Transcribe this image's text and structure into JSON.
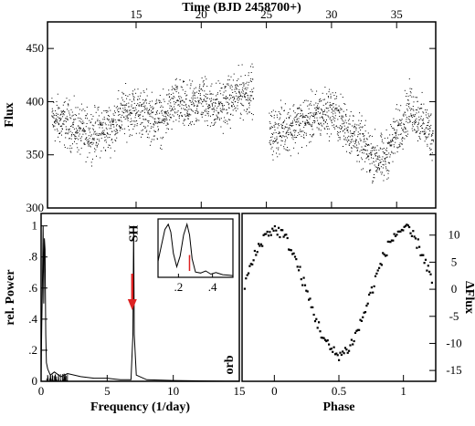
{
  "chart_data": [
    {
      "id": "lightcurve",
      "type": "scatter",
      "xlabel": "Time (BJD 2458700+)",
      "ylabel": "Flux",
      "xlim": [
        8.2,
        38.0
      ],
      "ylim": [
        300,
        475
      ],
      "xticks": [
        15,
        20,
        25,
        30,
        35
      ],
      "yticks": [
        300,
        350,
        400,
        450
      ],
      "segments": [
        {
          "name": "",
          "x": [
            8.5,
            10,
            11,
            12,
            13,
            14,
            15,
            16,
            17,
            18,
            19,
            20,
            21,
            22,
            23,
            24.0
          ],
          "y": [
            385,
            378,
            370,
            372,
            376,
            390,
            393,
            386,
            383,
            400,
            392,
            404,
            395,
            400,
            408,
            412
          ]
        },
        {
          "name": "",
          "x": [
            25.2,
            26,
            27,
            28,
            29,
            30,
            31,
            32,
            33,
            34,
            35,
            36,
            37,
            37.8
          ],
          "y": [
            368,
            374,
            378,
            382,
            388,
            392,
            378,
            365,
            350,
            345,
            372,
            395,
            380,
            368
          ]
        }
      ],
      "scatter_amplitude": 22
    },
    {
      "id": "periodogram",
      "type": "line",
      "xlabel": "Frequency (1/day)",
      "ylabel": "rel. Power",
      "xlim": [
        0,
        15
      ],
      "ylim": [
        0,
        1.08
      ],
      "xticks": [
        0,
        5,
        10,
        15
      ],
      "yticks": [
        0,
        0.2,
        0.4,
        0.6,
        0.8,
        1.0
      ],
      "ytick_labels": [
        "0",
        ".2",
        ".4",
        ".6",
        ".8",
        "1"
      ],
      "x": [
        0,
        0.05,
        0.1,
        0.15,
        0.2,
        0.25,
        0.3,
        0.35,
        0.4,
        0.5,
        0.7,
        1.0,
        1.5,
        2.0,
        3.0,
        4.0,
        5.0,
        6.0,
        6.8,
        6.95,
        7.0,
        7.05,
        7.2,
        8.0,
        10.0,
        12.0,
        14.0,
        15.0
      ],
      "y": [
        0.05,
        0.35,
        0.6,
        1.0,
        0.5,
        0.92,
        0.85,
        0.3,
        0.12,
        0.08,
        0.04,
        0.06,
        0.03,
        0.05,
        0.03,
        0.02,
        0.02,
        0.01,
        0.01,
        0.3,
        1.0,
        0.3,
        0.04,
        0.01,
        0.005,
        0.003,
        0.002,
        0.002
      ],
      "annotations": {
        "peak_label": "SH",
        "orb_label": "orb",
        "arrow_x": 6.9,
        "arrow_color": "#dd2222"
      },
      "inset": {
        "xlim": [
          0.08,
          0.52
        ],
        "ylim": [
          0,
          1.1
        ],
        "xticks": [
          0.2,
          0.4
        ],
        "xtick_labels": [
          ".2",
          ".4"
        ],
        "x": [
          0.08,
          0.1,
          0.12,
          0.14,
          0.155,
          0.17,
          0.19,
          0.21,
          0.23,
          0.25,
          0.265,
          0.28,
          0.3,
          0.33,
          0.36,
          0.39,
          0.42,
          0.46,
          0.5,
          0.52
        ],
        "y": [
          0.3,
          0.6,
          0.9,
          1.0,
          0.85,
          0.45,
          0.2,
          0.4,
          0.8,
          1.0,
          0.8,
          0.35,
          0.1,
          0.08,
          0.12,
          0.06,
          0.09,
          0.05,
          0.04,
          0.03
        ],
        "marker_x": 0.265,
        "marker_color": "#dd2222"
      }
    },
    {
      "id": "phased",
      "type": "scatter",
      "xlabel": "Phase",
      "ylabel": "ΔFlux",
      "xlim": [
        -0.25,
        1.25
      ],
      "ylim": [
        -17,
        14
      ],
      "xticks": [
        0,
        0.5,
        1
      ],
      "xtick_labels": [
        "0",
        "0.5",
        "1"
      ],
      "yticks": [
        -15,
        -10,
        -5,
        0,
        5,
        10
      ],
      "model": "cosine",
      "amplitude": 11.5,
      "peak_phase": 0.0,
      "n_points": 150
    }
  ]
}
